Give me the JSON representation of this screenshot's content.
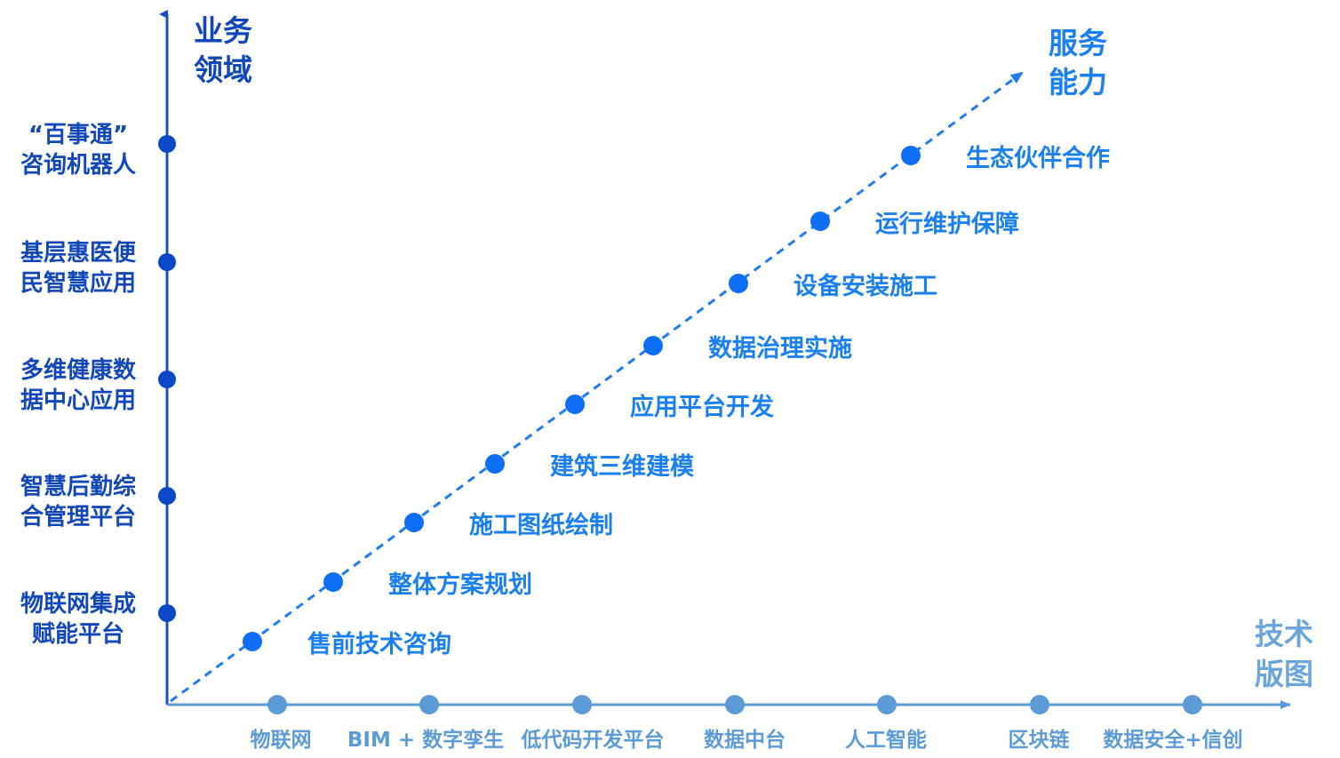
{
  "colors": {
    "y_axis": "#1a4fc4",
    "y_axis_dot": "#0b48c8",
    "y_text": "#1147b8",
    "diagonal": "#1f7cf0",
    "diagonal_dot": "#0e6ef5",
    "diagonal_text": "#1a7ff0",
    "x_axis": "#5b9ad6",
    "x_axis_dot": "#5c9bd6",
    "x_text": "#5c9bd6",
    "x_title": "#6aa5dc"
  },
  "y_axis": {
    "title": [
      "业务",
      "领域"
    ],
    "items": [
      {
        "lines": [
          "“百事通”",
          "咨询机器人"
        ]
      },
      {
        "lines": [
          "基层惠医便",
          "民智慧应用"
        ]
      },
      {
        "lines": [
          "多维健康数",
          "据中心应用"
        ]
      },
      {
        "lines": [
          "智慧后勤综",
          "合管理平台"
        ]
      },
      {
        "lines": [
          "物联网集成",
          "赋能平台"
        ]
      }
    ]
  },
  "diagonal": {
    "title": [
      "服务",
      "能力"
    ],
    "items": [
      {
        "label": "售前技术咨询"
      },
      {
        "label": "整体方案规划"
      },
      {
        "label": "施工图纸绘制"
      },
      {
        "label": "建筑三维建模"
      },
      {
        "label": "应用平台开发"
      },
      {
        "label": "数据治理实施"
      },
      {
        "label": "设备安装施工"
      },
      {
        "label": "运行维护保障"
      },
      {
        "label": "生态伙伴合作"
      }
    ]
  },
  "x_axis": {
    "title": [
      "技术",
      "版图"
    ],
    "items": [
      {
        "label": "物联网"
      },
      {
        "label": "BIM + 数字孪生"
      },
      {
        "label": "低代码开发平台"
      },
      {
        "label": "数据中台"
      },
      {
        "label": "人工智能"
      },
      {
        "label": "区块链"
      },
      {
        "label": "数据安全+信创"
      }
    ]
  }
}
